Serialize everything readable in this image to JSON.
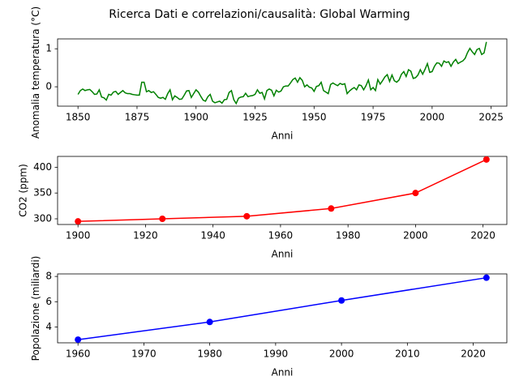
{
  "title": "Ricerca Dati e correlazioni/causalità: Global Warming",
  "chart_data": [
    {
      "type": "line",
      "xlabel": "Anni",
      "ylabel": "Anomalia temperatura (°C)",
      "marker": false,
      "x": [
        1850,
        1851,
        1852,
        1853,
        1854,
        1855,
        1856,
        1857,
        1858,
        1859,
        1860,
        1861,
        1862,
        1863,
        1864,
        1865,
        1866,
        1867,
        1868,
        1869,
        1870,
        1871,
        1872,
        1873,
        1874,
        1875,
        1876,
        1877,
        1878,
        1879,
        1880,
        1881,
        1882,
        1883,
        1884,
        1885,
        1886,
        1887,
        1888,
        1889,
        1890,
        1891,
        1892,
        1893,
        1894,
        1895,
        1896,
        1897,
        1898,
        1899,
        1900,
        1901,
        1902,
        1903,
        1904,
        1905,
        1906,
        1907,
        1908,
        1909,
        1910,
        1911,
        1912,
        1913,
        1914,
        1915,
        1916,
        1917,
        1918,
        1919,
        1920,
        1921,
        1922,
        1923,
        1924,
        1925,
        1926,
        1927,
        1928,
        1929,
        1930,
        1931,
        1932,
        1933,
        1934,
        1935,
        1936,
        1937,
        1938,
        1939,
        1940,
        1941,
        1942,
        1943,
        1944,
        1945,
        1946,
        1947,
        1948,
        1949,
        1950,
        1951,
        1952,
        1953,
        1954,
        1955,
        1956,
        1957,
        1958,
        1959,
        1960,
        1961,
        1962,
        1963,
        1964,
        1965,
        1966,
        1967,
        1968,
        1969,
        1970,
        1971,
        1972,
        1973,
        1974,
        1975,
        1976,
        1977,
        1978,
        1979,
        1980,
        1981,
        1982,
        1983,
        1984,
        1985,
        1986,
        1987,
        1988,
        1989,
        1990,
        1991,
        1992,
        1993,
        1994,
        1995,
        1996,
        1997,
        1998,
        1999,
        2000,
        2001,
        2002,
        2003,
        2004,
        2005,
        2006,
        2007,
        2008,
        2009,
        2010,
        2011,
        2012,
        2013,
        2014,
        2015,
        2016,
        2017,
        2018,
        2019,
        2020,
        2021,
        2022,
        2023
      ],
      "series": [
        {
          "name": "Anomalia temperatura",
          "color": "#008000",
          "values": [
            -0.2,
            -0.1,
            -0.06,
            -0.1,
            -0.08,
            -0.07,
            -0.13,
            -0.2,
            -0.19,
            -0.08,
            -0.27,
            -0.29,
            -0.35,
            -0.2,
            -0.22,
            -0.14,
            -0.12,
            -0.2,
            -0.15,
            -0.1,
            -0.16,
            -0.18,
            -0.18,
            -0.2,
            -0.21,
            -0.22,
            -0.22,
            0.12,
            0.12,
            -0.13,
            -0.1,
            -0.15,
            -0.13,
            -0.2,
            -0.28,
            -0.3,
            -0.28,
            -0.33,
            -0.18,
            -0.08,
            -0.34,
            -0.24,
            -0.28,
            -0.33,
            -0.32,
            -0.22,
            -0.11,
            -0.1,
            -0.28,
            -0.18,
            -0.08,
            -0.14,
            -0.25,
            -0.35,
            -0.38,
            -0.26,
            -0.2,
            -0.38,
            -0.42,
            -0.4,
            -0.38,
            -0.43,
            -0.34,
            -0.33,
            -0.15,
            -0.1,
            -0.34,
            -0.44,
            -0.3,
            -0.27,
            -0.26,
            -0.17,
            -0.26,
            -0.24,
            -0.23,
            -0.2,
            -0.08,
            -0.17,
            -0.15,
            -0.32,
            -0.1,
            -0.06,
            -0.09,
            -0.24,
            -0.09,
            -0.14,
            -0.11,
            0.0,
            0.02,
            0.02,
            0.1,
            0.19,
            0.23,
            0.12,
            0.24,
            0.17,
            0.0,
            0.05,
            -0.01,
            -0.03,
            -0.12,
            0.01,
            0.03,
            0.12,
            -0.1,
            -0.14,
            -0.18,
            0.06,
            0.1,
            0.06,
            0.03,
            0.09,
            0.06,
            0.08,
            -0.18,
            -0.11,
            -0.06,
            -0.02,
            -0.08,
            0.05,
            0.03,
            -0.08,
            0.03,
            0.18,
            -0.08,
            -0.02,
            -0.1,
            0.19,
            0.07,
            0.16,
            0.26,
            0.32,
            0.14,
            0.31,
            0.16,
            0.12,
            0.18,
            0.33,
            0.4,
            0.27,
            0.45,
            0.41,
            0.22,
            0.24,
            0.31,
            0.45,
            0.33,
            0.46,
            0.61,
            0.38,
            0.4,
            0.54,
            0.63,
            0.62,
            0.54,
            0.68,
            0.64,
            0.66,
            0.54,
            0.65,
            0.72,
            0.61,
            0.65,
            0.68,
            0.75,
            0.9,
            1.01,
            0.92,
            0.85,
            0.98,
            1.01,
            0.85,
            0.89,
            1.18
          ]
        }
      ],
      "xlim": [
        1841.35,
        2031.65
      ],
      "xticks": [
        1850,
        1875,
        1900,
        1925,
        1950,
        1975,
        2000,
        2025
      ],
      "ylim": [
        -0.51,
        1.26
      ],
      "yticks": [
        0,
        1
      ]
    },
    {
      "type": "line",
      "xlabel": "Anni",
      "ylabel": "CO2 (ppm)",
      "marker": true,
      "x": [
        1900,
        1925,
        1950,
        1975,
        2000,
        2021
      ],
      "series": [
        {
          "name": "CO2",
          "color": "#ff0000",
          "values": [
            295,
            300,
            305,
            320,
            350,
            415
          ]
        }
      ],
      "xlim": [
        1893.95,
        2027.05
      ],
      "xticks": [
        1900,
        1920,
        1940,
        1960,
        1980,
        2000,
        2020
      ],
      "ylim": [
        289,
        421
      ],
      "yticks": [
        300,
        350,
        400
      ]
    },
    {
      "type": "line",
      "xlabel": "Anni",
      "ylabel": "Popolazione (miliardi)",
      "marker": true,
      "x": [
        1960,
        1980,
        2000,
        2022
      ],
      "series": [
        {
          "name": "Popolazione",
          "color": "#0000ff",
          "values": [
            3.0,
            4.4,
            6.1,
            7.9
          ]
        }
      ],
      "xlim": [
        1956.9,
        2025.1
      ],
      "xticks": [
        1960,
        1970,
        1980,
        1990,
        2000,
        2010,
        2020
      ],
      "ylim": [
        2.75,
        8.2
      ],
      "yticks": [
        4,
        6,
        8
      ]
    }
  ]
}
